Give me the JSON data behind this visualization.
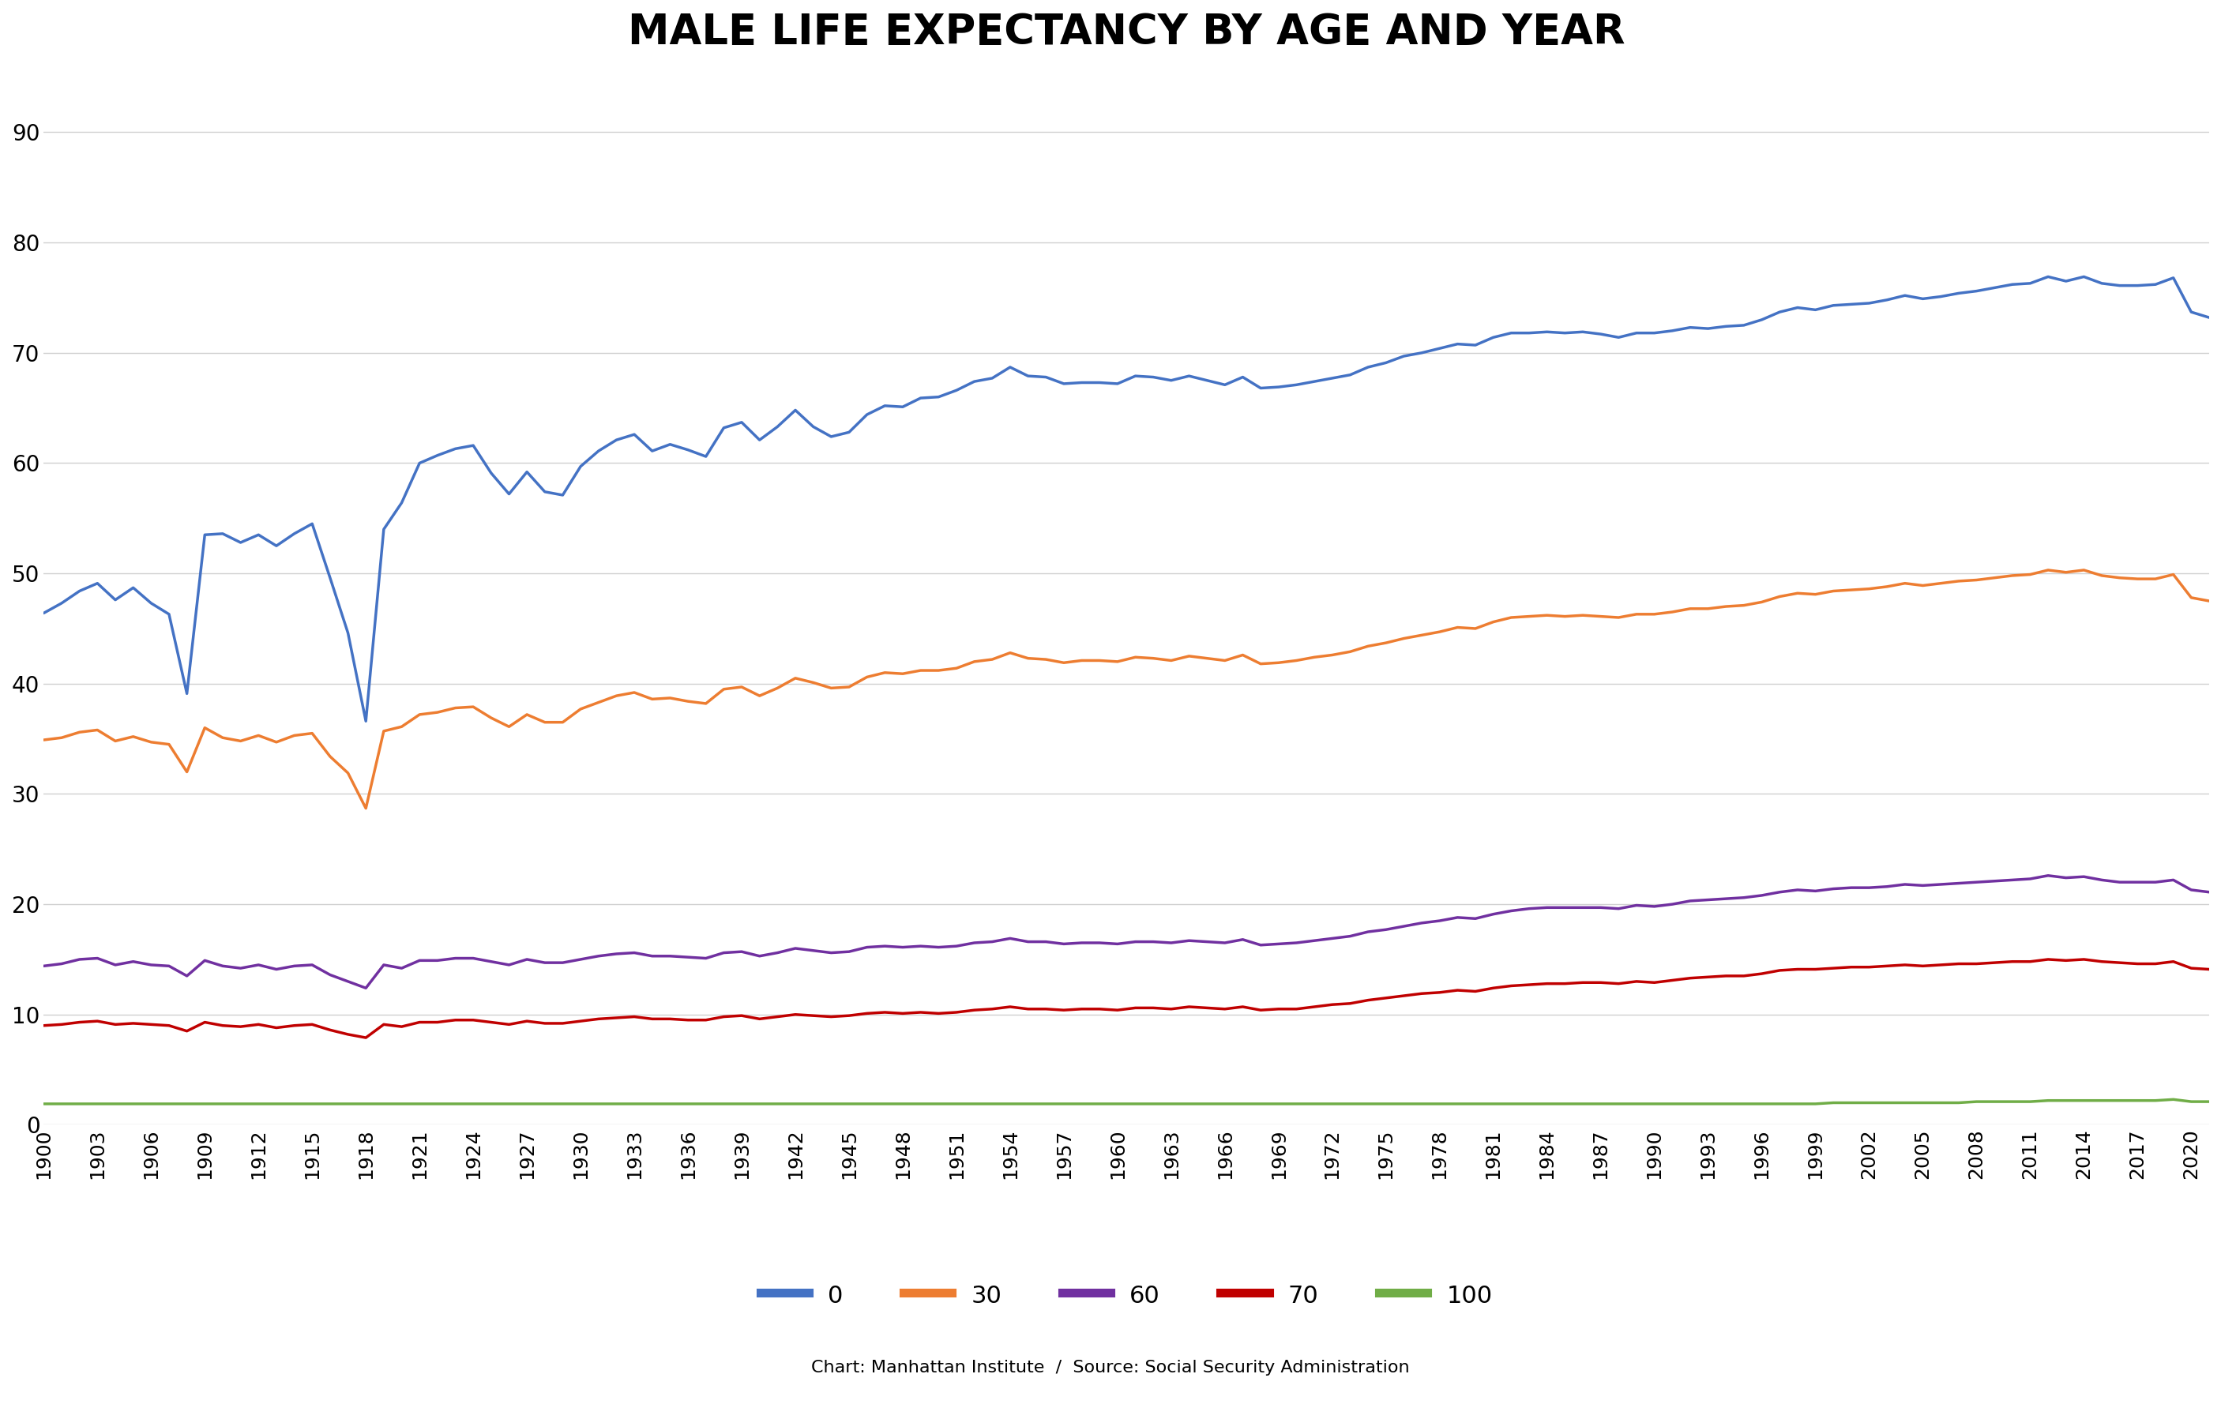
{
  "title": "MALE LIFE EXPECTANCY BY AGE AND YEAR",
  "subtitle": "Chart: Manhattan Institute  /  Source: Social Security Administration",
  "series": {
    "0": {
      "color": "#4472C4",
      "label": "0"
    },
    "30": {
      "color": "#ED7D31",
      "label": "30"
    },
    "60": {
      "color": "#7030A0",
      "label": "60"
    },
    "70": {
      "color": "#C00000",
      "label": "70"
    },
    "100": {
      "color": "#70AD47",
      "label": "100"
    }
  },
  "years": [
    1900,
    1901,
    1902,
    1903,
    1904,
    1905,
    1906,
    1907,
    1908,
    1909,
    1910,
    1911,
    1912,
    1913,
    1914,
    1915,
    1916,
    1917,
    1918,
    1919,
    1920,
    1921,
    1922,
    1923,
    1924,
    1925,
    1926,
    1927,
    1928,
    1929,
    1930,
    1931,
    1932,
    1933,
    1934,
    1935,
    1936,
    1937,
    1938,
    1939,
    1940,
    1941,
    1942,
    1943,
    1944,
    1945,
    1946,
    1947,
    1948,
    1949,
    1950,
    1951,
    1952,
    1953,
    1954,
    1955,
    1956,
    1957,
    1958,
    1959,
    1960,
    1961,
    1962,
    1963,
    1964,
    1965,
    1966,
    1967,
    1968,
    1969,
    1970,
    1971,
    1972,
    1973,
    1974,
    1975,
    1976,
    1977,
    1978,
    1979,
    1980,
    1981,
    1982,
    1983,
    1984,
    1985,
    1986,
    1987,
    1988,
    1989,
    1990,
    1991,
    1992,
    1993,
    1994,
    1995,
    1996,
    1997,
    1998,
    1999,
    2000,
    2001,
    2002,
    2003,
    2004,
    2005,
    2006,
    2007,
    2008,
    2009,
    2010,
    2011,
    2012,
    2013,
    2014,
    2015,
    2016,
    2017,
    2018,
    2019,
    2020,
    2021
  ],
  "age0": [
    46.4,
    47.3,
    48.4,
    49.1,
    47.6,
    48.7,
    47.3,
    46.3,
    39.1,
    53.5,
    53.6,
    52.8,
    53.5,
    52.5,
    53.6,
    54.5,
    49.6,
    44.6,
    36.6,
    54.0,
    56.4,
    60.0,
    60.7,
    61.3,
    61.6,
    59.1,
    57.2,
    59.2,
    57.4,
    57.1,
    59.7,
    61.1,
    62.1,
    62.6,
    61.1,
    61.7,
    61.2,
    60.6,
    63.2,
    63.7,
    62.1,
    63.3,
    64.8,
    63.3,
    62.4,
    62.8,
    64.4,
    65.2,
    65.1,
    65.9,
    66.0,
    66.6,
    67.4,
    67.7,
    68.7,
    67.9,
    67.8,
    67.2,
    67.3,
    67.3,
    67.2,
    67.9,
    67.8,
    67.5,
    67.9,
    67.5,
    67.1,
    67.8,
    66.8,
    66.9,
    67.1,
    67.4,
    67.7,
    68.0,
    68.7,
    69.1,
    69.7,
    70.0,
    70.4,
    70.8,
    70.7,
    71.4,
    71.8,
    71.8,
    71.9,
    71.8,
    71.9,
    71.7,
    71.4,
    71.8,
    71.8,
    72.0,
    72.3,
    72.2,
    72.4,
    72.5,
    73.0,
    73.7,
    74.1,
    73.9,
    74.3,
    74.4,
    74.5,
    74.8,
    75.2,
    74.9,
    75.1,
    75.4,
    75.6,
    75.9,
    76.2,
    76.3,
    76.9,
    76.5,
    76.9,
    76.3,
    76.1,
    76.1,
    76.2,
    76.8,
    73.7,
    73.2
  ],
  "age30": [
    34.9,
    35.1,
    35.6,
    35.8,
    34.8,
    35.2,
    34.7,
    34.5,
    32.0,
    36.0,
    35.1,
    34.8,
    35.3,
    34.7,
    35.3,
    35.5,
    33.4,
    31.9,
    28.7,
    35.7,
    36.1,
    37.2,
    37.4,
    37.8,
    37.9,
    36.9,
    36.1,
    37.2,
    36.5,
    36.5,
    37.7,
    38.3,
    38.9,
    39.2,
    38.6,
    38.7,
    38.4,
    38.2,
    39.5,
    39.7,
    38.9,
    39.6,
    40.5,
    40.1,
    39.6,
    39.7,
    40.6,
    41.0,
    40.9,
    41.2,
    41.2,
    41.4,
    42.0,
    42.2,
    42.8,
    42.3,
    42.2,
    41.9,
    42.1,
    42.1,
    42.0,
    42.4,
    42.3,
    42.1,
    42.5,
    42.3,
    42.1,
    42.6,
    41.8,
    41.9,
    42.1,
    42.4,
    42.6,
    42.9,
    43.4,
    43.7,
    44.1,
    44.4,
    44.7,
    45.1,
    45.0,
    45.6,
    46.0,
    46.1,
    46.2,
    46.1,
    46.2,
    46.1,
    46.0,
    46.3,
    46.3,
    46.5,
    46.8,
    46.8,
    47.0,
    47.1,
    47.4,
    47.9,
    48.2,
    48.1,
    48.4,
    48.5,
    48.6,
    48.8,
    49.1,
    48.9,
    49.1,
    49.3,
    49.4,
    49.6,
    49.8,
    49.9,
    50.3,
    50.1,
    50.3,
    49.8,
    49.6,
    49.5,
    49.5,
    49.9,
    47.8,
    47.5
  ],
  "age60": [
    14.4,
    14.6,
    15.0,
    15.1,
    14.5,
    14.8,
    14.5,
    14.4,
    13.5,
    14.9,
    14.4,
    14.2,
    14.5,
    14.1,
    14.4,
    14.5,
    13.6,
    13.0,
    12.4,
    14.5,
    14.2,
    14.9,
    14.9,
    15.1,
    15.1,
    14.8,
    14.5,
    15.0,
    14.7,
    14.7,
    15.0,
    15.3,
    15.5,
    15.6,
    15.3,
    15.3,
    15.2,
    15.1,
    15.6,
    15.7,
    15.3,
    15.6,
    16.0,
    15.8,
    15.6,
    15.7,
    16.1,
    16.2,
    16.1,
    16.2,
    16.1,
    16.2,
    16.5,
    16.6,
    16.9,
    16.6,
    16.6,
    16.4,
    16.5,
    16.5,
    16.4,
    16.6,
    16.6,
    16.5,
    16.7,
    16.6,
    16.5,
    16.8,
    16.3,
    16.4,
    16.5,
    16.7,
    16.9,
    17.1,
    17.5,
    17.7,
    18.0,
    18.3,
    18.5,
    18.8,
    18.7,
    19.1,
    19.4,
    19.6,
    19.7,
    19.7,
    19.7,
    19.7,
    19.6,
    19.9,
    19.8,
    20.0,
    20.3,
    20.4,
    20.5,
    20.6,
    20.8,
    21.1,
    21.3,
    21.2,
    21.4,
    21.5,
    21.5,
    21.6,
    21.8,
    21.7,
    21.8,
    21.9,
    22.0,
    22.1,
    22.2,
    22.3,
    22.6,
    22.4,
    22.5,
    22.2,
    22.0,
    22.0,
    22.0,
    22.2,
    21.3,
    21.1
  ],
  "age70": [
    9.0,
    9.1,
    9.3,
    9.4,
    9.1,
    9.2,
    9.1,
    9.0,
    8.5,
    9.3,
    9.0,
    8.9,
    9.1,
    8.8,
    9.0,
    9.1,
    8.6,
    8.2,
    7.9,
    9.1,
    8.9,
    9.3,
    9.3,
    9.5,
    9.5,
    9.3,
    9.1,
    9.4,
    9.2,
    9.2,
    9.4,
    9.6,
    9.7,
    9.8,
    9.6,
    9.6,
    9.5,
    9.5,
    9.8,
    9.9,
    9.6,
    9.8,
    10.0,
    9.9,
    9.8,
    9.9,
    10.1,
    10.2,
    10.1,
    10.2,
    10.1,
    10.2,
    10.4,
    10.5,
    10.7,
    10.5,
    10.5,
    10.4,
    10.5,
    10.5,
    10.4,
    10.6,
    10.6,
    10.5,
    10.7,
    10.6,
    10.5,
    10.7,
    10.4,
    10.5,
    10.5,
    10.7,
    10.9,
    11.0,
    11.3,
    11.5,
    11.7,
    11.9,
    12.0,
    12.2,
    12.1,
    12.4,
    12.6,
    12.7,
    12.8,
    12.8,
    12.9,
    12.9,
    12.8,
    13.0,
    12.9,
    13.1,
    13.3,
    13.4,
    13.5,
    13.5,
    13.7,
    14.0,
    14.1,
    14.1,
    14.2,
    14.3,
    14.3,
    14.4,
    14.5,
    14.4,
    14.5,
    14.6,
    14.6,
    14.7,
    14.8,
    14.8,
    15.0,
    14.9,
    15.0,
    14.8,
    14.7,
    14.6,
    14.6,
    14.8,
    14.2,
    14.1
  ],
  "age100": [
    1.9,
    1.9,
    1.9,
    1.9,
    1.9,
    1.9,
    1.9,
    1.9,
    1.9,
    1.9,
    1.9,
    1.9,
    1.9,
    1.9,
    1.9,
    1.9,
    1.9,
    1.9,
    1.9,
    1.9,
    1.9,
    1.9,
    1.9,
    1.9,
    1.9,
    1.9,
    1.9,
    1.9,
    1.9,
    1.9,
    1.9,
    1.9,
    1.9,
    1.9,
    1.9,
    1.9,
    1.9,
    1.9,
    1.9,
    1.9,
    1.9,
    1.9,
    1.9,
    1.9,
    1.9,
    1.9,
    1.9,
    1.9,
    1.9,
    1.9,
    1.9,
    1.9,
    1.9,
    1.9,
    1.9,
    1.9,
    1.9,
    1.9,
    1.9,
    1.9,
    1.9,
    1.9,
    1.9,
    1.9,
    1.9,
    1.9,
    1.9,
    1.9,
    1.9,
    1.9,
    1.9,
    1.9,
    1.9,
    1.9,
    1.9,
    1.9,
    1.9,
    1.9,
    1.9,
    1.9,
    1.9,
    1.9,
    1.9,
    1.9,
    1.9,
    1.9,
    1.9,
    1.9,
    1.9,
    1.9,
    1.9,
    1.9,
    1.9,
    1.9,
    1.9,
    1.9,
    1.9,
    1.9,
    1.9,
    1.9,
    2.0,
    2.0,
    2.0,
    2.0,
    2.0,
    2.0,
    2.0,
    2.0,
    2.1,
    2.1,
    2.1,
    2.1,
    2.2,
    2.2,
    2.2,
    2.2,
    2.2,
    2.2,
    2.2,
    2.3,
    2.1,
    2.1
  ],
  "ylim": [
    0,
    95
  ],
  "yticks": [
    0,
    10,
    20,
    30,
    40,
    50,
    60,
    70,
    80,
    90
  ],
  "background_color": "#ffffff",
  "grid_color": "#d0d0d0",
  "line_width": 2.5
}
